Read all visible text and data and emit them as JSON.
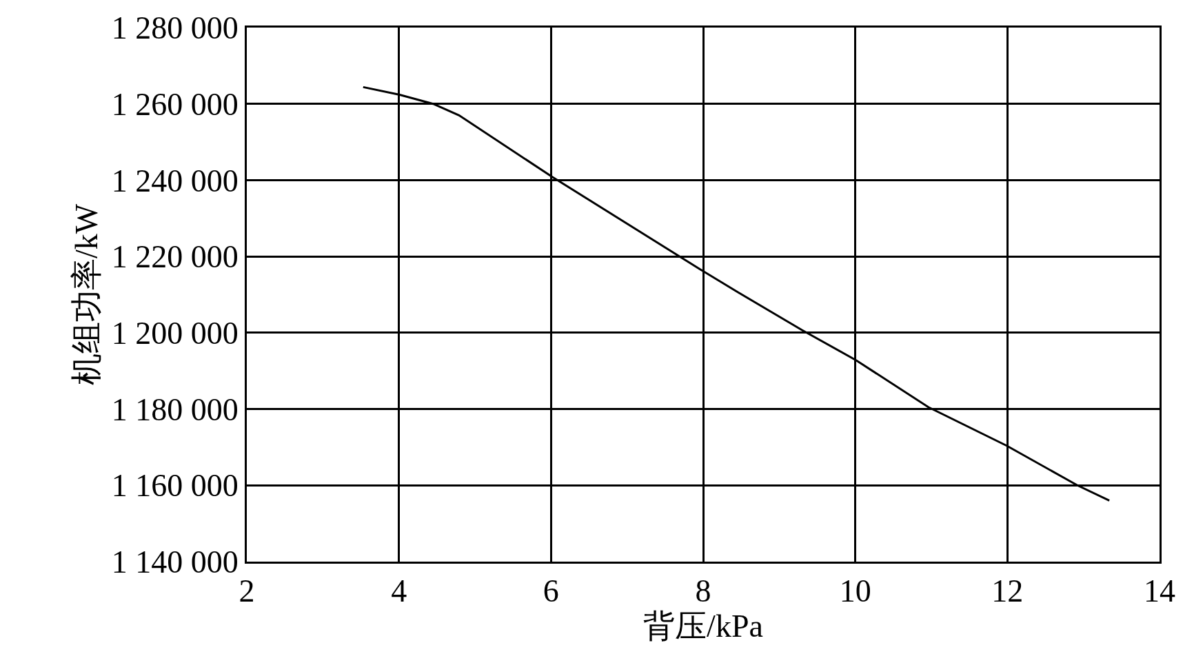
{
  "chart_data": {
    "type": "line",
    "xlabel": "背压/kPa",
    "ylabel": "机组功率/kW",
    "series": [
      {
        "color": "#000000",
        "x": [
          3.53,
          4.01,
          4.45,
          4.79,
          6.02,
          7.97,
          8.46,
          9.3,
          10.01,
          10.96,
          11.99,
          12.92,
          13.34
        ],
        "values": [
          1264400,
          1262400,
          1260000,
          1257000,
          1240800,
          1216500,
          1210600,
          1200700,
          1192800,
          1180500,
          1170400,
          1160000,
          1156000
        ]
      }
    ],
    "xlim": [
      2,
      14
    ],
    "xticks": [
      2,
      4,
      6,
      8,
      10,
      12,
      14
    ],
    "ylim": [
      1140000,
      1280000
    ],
    "yticks": [
      {
        "value": 1140000,
        "label": "1 140 000"
      },
      {
        "value": 1160000,
        "label": "1 160 000"
      },
      {
        "value": 1180000,
        "label": "1 180 000"
      },
      {
        "value": 1200000,
        "label": "1 200 000"
      },
      {
        "value": 1220000,
        "label": "1 220 000"
      },
      {
        "value": 1240000,
        "label": "1 240 000"
      },
      {
        "value": 1260000,
        "label": "1 260 000"
      },
      {
        "value": 1280000,
        "label": "1 280 000"
      }
    ],
    "grid": true,
    "marker": "none",
    "line_style": "solid"
  }
}
